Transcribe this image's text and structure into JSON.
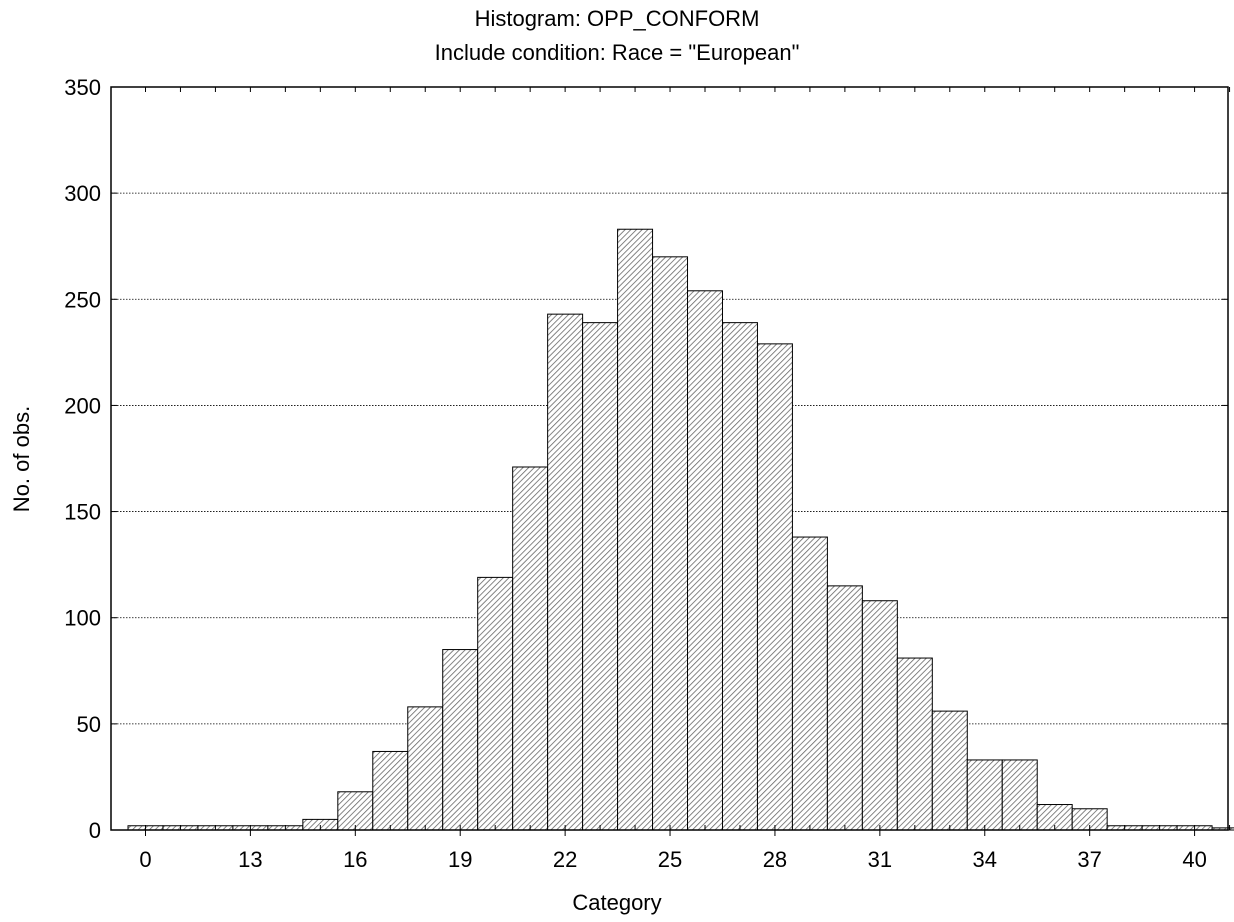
{
  "chart_data": {
    "type": "bar",
    "title": "Histogram: OPP_CONFORM",
    "subtitle": "Include condition: Race = \"European\"",
    "xlabel": "Category",
    "ylabel": "No. of obs.",
    "ylim": [
      0,
      350
    ],
    "yticks": [
      0,
      50,
      100,
      150,
      200,
      250,
      300,
      350
    ],
    "xtick_labels": [
      "0",
      "13",
      "16",
      "19",
      "22",
      "25",
      "28",
      "31",
      "34",
      "37",
      "40"
    ],
    "categories": [
      "0",
      "1",
      "2",
      "3",
      "4",
      "13",
      "14",
      "15",
      "16",
      "17",
      "18",
      "19",
      "20",
      "21",
      "22",
      "23",
      "24",
      "25",
      "26",
      "27",
      "28",
      "29",
      "30",
      "31",
      "32",
      "33",
      "34",
      "35",
      "36",
      "37",
      "38",
      "39",
      "40",
      "41",
      "42"
    ],
    "values": [
      2,
      2,
      2,
      2,
      2,
      5,
      18,
      37,
      58,
      85,
      119,
      171,
      243,
      239,
      283,
      270,
      254,
      239,
      229,
      138,
      115,
      108,
      81,
      56,
      33,
      33,
      12,
      10,
      2,
      2,
      2,
      1,
      2,
      1,
      1
    ],
    "grid": "horizontal",
    "bar_fill": "hatched",
    "colors": {
      "bar_fill": "#ffffff",
      "hatch": "#555555",
      "outline": "#000000",
      "grid": "#000000"
    }
  }
}
